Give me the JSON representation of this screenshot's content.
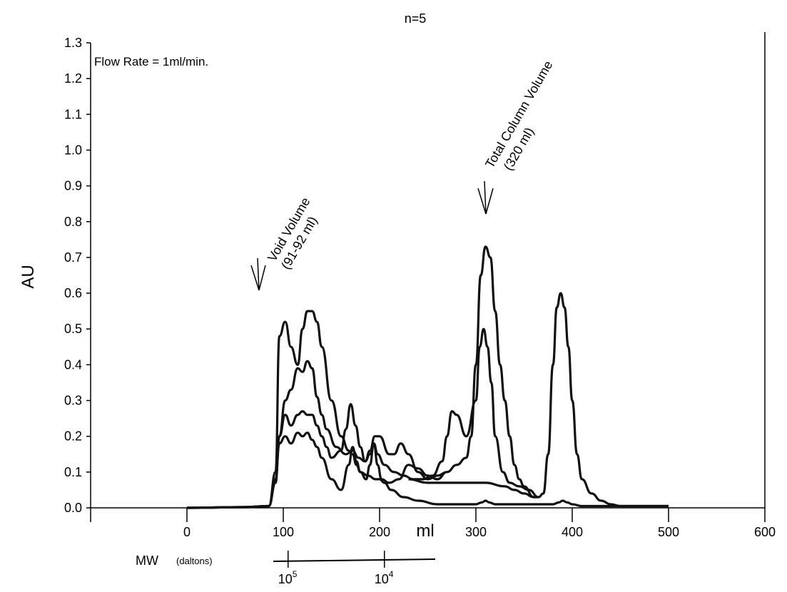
{
  "chart_data": {
    "type": "line",
    "title": "n=5",
    "xlabel": "ml",
    "ylabel": "AU",
    "xlim": [
      -100,
      600
    ],
    "ylim": [
      0,
      1.3
    ],
    "x_ticks": [
      0,
      100,
      200,
      300,
      400,
      500,
      600
    ],
    "y_ticks": [
      "0.0",
      "0.1",
      "0.2",
      "0.3",
      "0.4",
      "0.5",
      "0.6",
      "0.7",
      "0.8",
      "0.9",
      "1.0",
      "1.1",
      "1.2",
      "1.3"
    ],
    "grid": false,
    "legend": "none",
    "annotations": {
      "flow_rate": "Flow Rate = 1ml/min.",
      "void_volume_line1": "Void Volume",
      "void_volume_line2": "(91-92 ml)",
      "total_volume_line1": "Total Column Volume",
      "total_volume_line2": "(320 ml)"
    },
    "mw_axis": {
      "label": "MW",
      "unit": "(daltons)",
      "ticks": [
        {
          "base": "10",
          "exp": "5",
          "x": 105
        },
        {
          "base": "10",
          "exp": "4",
          "x": 205
        }
      ]
    },
    "series": [
      {
        "x": [
          0,
          60,
          85,
          92,
          96,
          102,
          108,
          115,
          120,
          125,
          130,
          135,
          140,
          150,
          160,
          168,
          172,
          176,
          180,
          188,
          196,
          200,
          205,
          212,
          225,
          240,
          260,
          280,
          300,
          306,
          310,
          314,
          320,
          330,
          350,
          370,
          380,
          386,
          390,
          395,
          400,
          410,
          430,
          450,
          470,
          500
        ],
        "y": [
          0,
          0.002,
          0.005,
          0.1,
          0.48,
          0.52,
          0.45,
          0.4,
          0.5,
          0.55,
          0.55,
          0.52,
          0.45,
          0.3,
          0.2,
          0.16,
          0.15,
          0.12,
          0.1,
          0.09,
          0.08,
          0.08,
          0.07,
          0.05,
          0.03,
          0.02,
          0.01,
          0.01,
          0.01,
          0.015,
          0.02,
          0.015,
          0.01,
          0.01,
          0.01,
          0.01,
          0.01,
          0.015,
          0.02,
          0.015,
          0.01,
          0.005,
          0.005,
          0.005,
          0.005,
          0.005
        ]
      },
      {
        "x": [
          0,
          60,
          85,
          92,
          96,
          102,
          108,
          115,
          120,
          125,
          130,
          135,
          140,
          145,
          155,
          165,
          172,
          178,
          185,
          190,
          194,
          198,
          205,
          215,
          225,
          235,
          245,
          255,
          265,
          270,
          275,
          280,
          290,
          300,
          304,
          308,
          312,
          316,
          320,
          328,
          335,
          345,
          355,
          365
        ],
        "y": [
          0,
          0.002,
          0.005,
          0.08,
          0.2,
          0.3,
          0.33,
          0.39,
          0.38,
          0.41,
          0.39,
          0.31,
          0.26,
          0.22,
          0.17,
          0.15,
          0.16,
          0.14,
          0.13,
          0.15,
          0.18,
          0.15,
          0.12,
          0.1,
          0.09,
          0.08,
          0.08,
          0.09,
          0.13,
          0.2,
          0.27,
          0.26,
          0.2,
          0.3,
          0.45,
          0.5,
          0.45,
          0.35,
          0.2,
          0.1,
          0.07,
          0.06,
          0.05,
          0.03
        ]
      },
      {
        "x": [
          0,
          60,
          85,
          92,
          96,
          102,
          108,
          115,
          120,
          125,
          130,
          135,
          140,
          145,
          150,
          160,
          165,
          170,
          175,
          180,
          185,
          190,
          195,
          200,
          210,
          215,
          222,
          230,
          240,
          250,
          260,
          270,
          280,
          290,
          295,
          300,
          305,
          310,
          315,
          320,
          325,
          330,
          335,
          340,
          345,
          350,
          360
        ],
        "y": [
          0,
          0.002,
          0.005,
          0.07,
          0.2,
          0.26,
          0.23,
          0.26,
          0.27,
          0.26,
          0.26,
          0.23,
          0.2,
          0.17,
          0.14,
          0.16,
          0.22,
          0.29,
          0.23,
          0.17,
          0.13,
          0.16,
          0.2,
          0.2,
          0.15,
          0.15,
          0.18,
          0.15,
          0.1,
          0.08,
          0.09,
          0.1,
          0.12,
          0.14,
          0.2,
          0.4,
          0.65,
          0.73,
          0.7,
          0.55,
          0.4,
          0.3,
          0.2,
          0.12,
          0.08,
          0.06,
          0.03
        ]
      },
      {
        "x": [
          0,
          60,
          85,
          92,
          96,
          102,
          108,
          115,
          120,
          125,
          130,
          135,
          140,
          150,
          160,
          168,
          172,
          176,
          180,
          186,
          190,
          194,
          198,
          202,
          210,
          220,
          230,
          240,
          250,
          260,
          270
        ],
        "y": [
          0,
          0.002,
          0.005,
          0.08,
          0.18,
          0.2,
          0.18,
          0.21,
          0.2,
          0.21,
          0.19,
          0.17,
          0.14,
          0.08,
          0.05,
          0.12,
          0.17,
          0.13,
          0.1,
          0.08,
          0.12,
          0.18,
          0.12,
          0.08,
          0.07,
          0.08,
          0.12,
          0.11,
          0.09,
          0.08,
          0.1
        ]
      },
      {
        "x": [
          230,
          250,
          270,
          290,
          310,
          330,
          340,
          350,
          360,
          365,
          370,
          375,
          380,
          384,
          388,
          392,
          396,
          400,
          405,
          410,
          420,
          430,
          440,
          450,
          470,
          500
        ],
        "y": [
          0.08,
          0.07,
          0.07,
          0.07,
          0.07,
          0.06,
          0.05,
          0.04,
          0.03,
          0.03,
          0.04,
          0.15,
          0.4,
          0.56,
          0.6,
          0.56,
          0.45,
          0.3,
          0.15,
          0.08,
          0.04,
          0.02,
          0.01,
          0.005,
          0.005,
          0.005
        ]
      }
    ],
    "data_labels": {
      "y_axis_title": "AU",
      "x_unit": "ml"
    }
  }
}
